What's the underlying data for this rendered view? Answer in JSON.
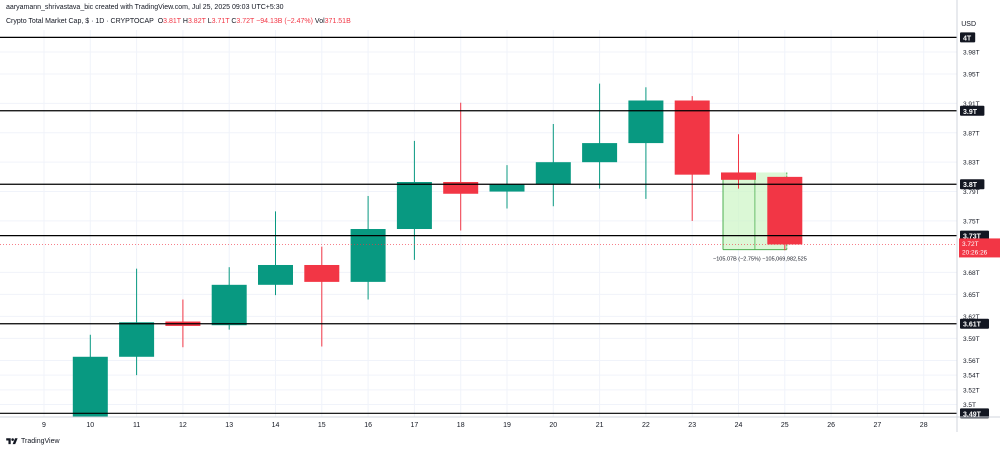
{
  "header": {
    "credit": "aaryamann_shrivastava_bic created with TradingView.com, Jul 25, 2025 09:03 UTC+5:30",
    "symbol": "Crypto Total Market Cap, $ · 1D · CRYPTOCAP",
    "open_label": "O",
    "open": "3.81T",
    "high_label": "H",
    "high": "3.82T",
    "low_label": "L",
    "low": "3.71T",
    "close_label": "C",
    "close": "3.72T",
    "change": "−94.13B (−2.47%)",
    "vol_label": "Vol",
    "vol": "371.51B",
    "currency": "USD"
  },
  "footer": {
    "brand": "TradingView",
    "logo_icon": "tradingview-logo-icon"
  },
  "colors": {
    "up": "#089981",
    "down": "#f23645",
    "measure_fill": "#ccf5c4",
    "measure_line": "#4caf50"
  },
  "chart_data": {
    "type": "candlestick",
    "x_ticks": [
      "9",
      "10",
      "11",
      "12",
      "13",
      "14",
      "15",
      "16",
      "17",
      "18",
      "19",
      "20",
      "21",
      "22",
      "23",
      "24",
      "25",
      "26",
      "27",
      "28"
    ],
    "y_ticks": [
      "3.98T",
      "3.95T",
      "3.91T",
      "3.87T",
      "3.83T",
      "3.79T",
      "3.75T",
      "3.68T",
      "3.65T",
      "3.62T",
      "3.59T",
      "3.56T",
      "3.54T",
      "3.52T",
      "3.5T"
    ],
    "ylim": [
      3.483,
      4.01
    ],
    "candles": [
      {
        "day": "10",
        "open": 3.483,
        "high": 3.595,
        "low": 3.483,
        "close": 3.565
      },
      {
        "day": "11",
        "open": 3.565,
        "high": 3.685,
        "low": 3.54,
        "close": 3.612
      },
      {
        "day": "12",
        "open": 3.613,
        "high": 3.643,
        "low": 3.578,
        "close": 3.607
      },
      {
        "day": "13",
        "open": 3.608,
        "high": 3.687,
        "low": 3.602,
        "close": 3.663
      },
      {
        "day": "14",
        "open": 3.663,
        "high": 3.763,
        "low": 3.649,
        "close": 3.69
      },
      {
        "day": "15",
        "open": 3.69,
        "high": 3.715,
        "low": 3.579,
        "close": 3.667
      },
      {
        "day": "16",
        "open": 3.667,
        "high": 3.784,
        "low": 3.643,
        "close": 3.739
      },
      {
        "day": "17",
        "open": 3.739,
        "high": 3.859,
        "low": 3.697,
        "close": 3.803
      },
      {
        "day": "18",
        "open": 3.803,
        "high": 3.911,
        "low": 3.737,
        "close": 3.787
      },
      {
        "day": "19",
        "open": 3.79,
        "high": 3.826,
        "low": 3.767,
        "close": 3.8
      },
      {
        "day": "20",
        "open": 3.8,
        "high": 3.882,
        "low": 3.77,
        "close": 3.83
      },
      {
        "day": "21",
        "open": 3.83,
        "high": 3.937,
        "low": 3.794,
        "close": 3.856
      },
      {
        "day": "22",
        "open": 3.856,
        "high": 3.932,
        "low": 3.78,
        "close": 3.914
      },
      {
        "day": "23",
        "open": 3.914,
        "high": 3.92,
        "low": 3.75,
        "close": 3.813
      },
      {
        "day": "24",
        "open": 3.816,
        "high": 3.868,
        "low": 3.794,
        "close": 3.806
      },
      {
        "day": "25",
        "open": 3.81,
        "high": 3.81,
        "low": 3.71,
        "close": 3.718
      }
    ],
    "levels": [
      {
        "value": 4.0,
        "label": "4T"
      },
      {
        "value": 3.9,
        "label": "3.9T"
      },
      {
        "value": 3.8,
        "label": "3.8T"
      },
      {
        "value": 3.73,
        "label": "3.73T"
      },
      {
        "value": 3.61,
        "label": "3.61T"
      },
      {
        "value": 3.488,
        "label": "3.49T"
      }
    ],
    "last_price": {
      "value": 3.718,
      "label": "3.72T",
      "countdown": "20:26:26"
    },
    "measure": {
      "from_day": "24",
      "to_day": "25",
      "top": 3.816,
      "bottom": 3.711,
      "label": "−105.07B (−2.75%) −105,069,982,525"
    }
  }
}
